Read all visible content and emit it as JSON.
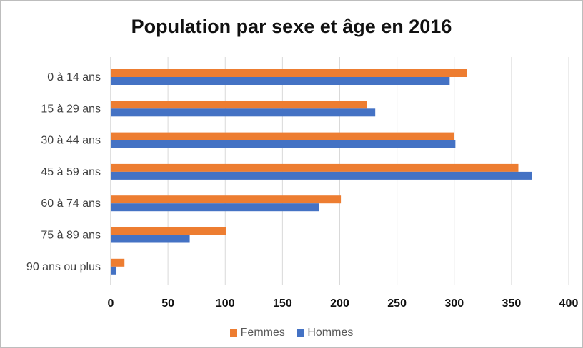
{
  "chart_data": {
    "type": "bar",
    "orientation": "horizontal",
    "title": "Population par sexe et âge en 2016",
    "categories": [
      "0 à 14 ans",
      "15 à 29 ans",
      "30 à 44 ans",
      "45 à 59 ans",
      "60 à 74 ans",
      "75 à 89 ans",
      "90 ans ou plus"
    ],
    "series": [
      {
        "name": "Femmes",
        "color": "#ED7D31",
        "values": [
          311,
          224,
          300,
          356,
          201,
          101,
          12
        ]
      },
      {
        "name": "Hommes",
        "color": "#4472C4",
        "values": [
          296,
          231,
          301,
          368,
          182,
          69,
          5
        ]
      }
    ],
    "xlim": [
      0,
      400
    ],
    "xticks": [
      "0",
      "50",
      "100",
      "150",
      "200",
      "250",
      "300",
      "350",
      "400"
    ],
    "grid": true,
    "legend_position": "bottom"
  }
}
